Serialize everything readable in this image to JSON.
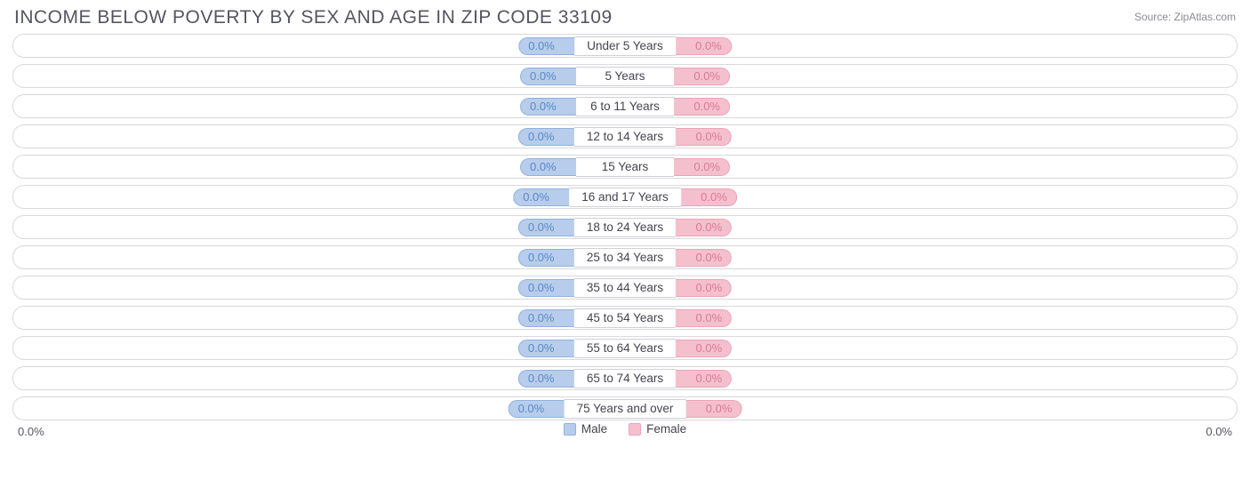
{
  "header": {
    "title": "INCOME BELOW POVERTY BY SEX AND AGE IN ZIP CODE 33109",
    "source": "Source: ZipAtlas.com"
  },
  "colors": {
    "male_fill": "#b7cdeb",
    "male_border": "#8fb2df",
    "male_text": "#5a88c6",
    "female_fill": "#f5c0ce",
    "female_border": "#eea3b6",
    "female_text": "#d97a95",
    "track_border": "#d9d9de",
    "label_text": "#444450",
    "background": "#ffffff"
  },
  "chart": {
    "type": "diverging-bar",
    "male_label": "Male",
    "female_label": "Female",
    "axis_left": "0.0%",
    "axis_right": "0.0%",
    "rows": [
      {
        "category": "Under 5 Years",
        "male_value": "0.0%",
        "female_value": "0.0%"
      },
      {
        "category": "5 Years",
        "male_value": "0.0%",
        "female_value": "0.0%"
      },
      {
        "category": "6 to 11 Years",
        "male_value": "0.0%",
        "female_value": "0.0%"
      },
      {
        "category": "12 to 14 Years",
        "male_value": "0.0%",
        "female_value": "0.0%"
      },
      {
        "category": "15 Years",
        "male_value": "0.0%",
        "female_value": "0.0%"
      },
      {
        "category": "16 and 17 Years",
        "male_value": "0.0%",
        "female_value": "0.0%"
      },
      {
        "category": "18 to 24 Years",
        "male_value": "0.0%",
        "female_value": "0.0%"
      },
      {
        "category": "25 to 34 Years",
        "male_value": "0.0%",
        "female_value": "0.0%"
      },
      {
        "category": "35 to 44 Years",
        "male_value": "0.0%",
        "female_value": "0.0%"
      },
      {
        "category": "45 to 54 Years",
        "male_value": "0.0%",
        "female_value": "0.0%"
      },
      {
        "category": "55 to 64 Years",
        "male_value": "0.0%",
        "female_value": "0.0%"
      },
      {
        "category": "65 to 74 Years",
        "male_value": "0.0%",
        "female_value": "0.0%"
      },
      {
        "category": "75 Years and over",
        "male_value": "0.0%",
        "female_value": "0.0%"
      }
    ]
  }
}
